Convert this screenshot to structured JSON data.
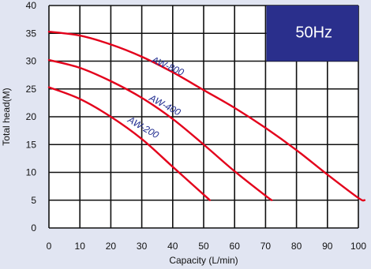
{
  "chart_data": {
    "type": "line",
    "title": "",
    "xlabel": "Capacity (L/min)",
    "ylabel": "Total head(M)",
    "xlim": [
      0,
      100
    ],
    "ylim": [
      0,
      40
    ],
    "x_ticks": [
      "0",
      "10",
      "20",
      "30",
      "40",
      "50",
      "60",
      "70",
      "80",
      "90",
      "100"
    ],
    "y_ticks": [
      "0",
      "5",
      "10",
      "15",
      "20",
      "25",
      "30",
      "35",
      "40"
    ],
    "grid": true,
    "legend": "none",
    "badge": "50Hz",
    "series": [
      {
        "name": "AW-200",
        "x": [
          0,
          10,
          20,
          30,
          40,
          50,
          52
        ],
        "y": [
          25.3,
          23.2,
          20.0,
          16.0,
          11.0,
          6.0,
          5.0
        ]
      },
      {
        "name": "AW-400",
        "x": [
          0,
          10,
          20,
          30,
          40,
          50,
          60,
          70,
          72
        ],
        "y": [
          30.2,
          28.8,
          26.4,
          23.4,
          19.6,
          15.0,
          10.2,
          5.8,
          5.0
        ]
      },
      {
        "name": "AW-800",
        "x": [
          0,
          10,
          20,
          30,
          40,
          50,
          60,
          70,
          80,
          90,
          100,
          102
        ],
        "y": [
          35.3,
          34.6,
          33.0,
          30.8,
          28.0,
          24.8,
          21.6,
          18.0,
          14.0,
          9.6,
          5.4,
          5.0
        ]
      }
    ],
    "colors": {
      "curve": "#e3001b",
      "grid": "#111111",
      "badge_bg": "#2a2f8c",
      "label_text": "#1f2b8f",
      "plot_bg": "#ffffff",
      "page_bg": "#e1e5f2"
    }
  }
}
